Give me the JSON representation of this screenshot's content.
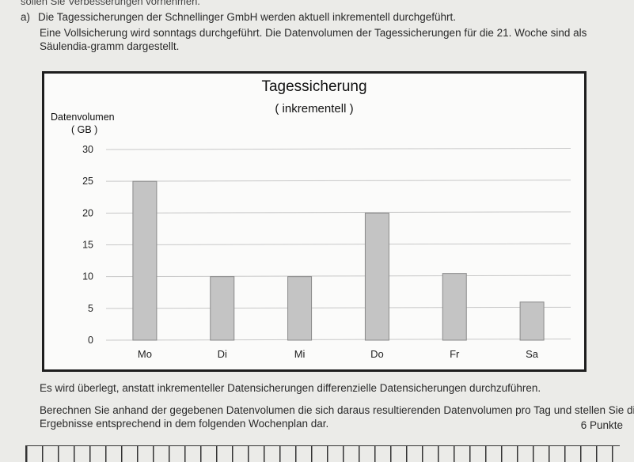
{
  "page": {
    "cut_line": "sollen Sie Verbesserungen vornehmen.",
    "task_marker": "a)",
    "task_title": "Die Tagessicherungen der Schnellinger GmbH werden aktuell inkrementell durchgeführt.",
    "intro_text": "Eine Vollsicherung wird sonntags durchgeführt. Die Datenvolumen der Tagessicherungen für die 21. Woche sind als Säulendia-gramm dargestellt.",
    "para_1": "Es wird überlegt, anstatt inkrementeller Datensicherungen differenzielle Datensicherungen durchzuführen.",
    "para_2_line1": "Berechnen Sie anhand der gegebenen Datenvolumen die sich daraus resultierenden Datenvolumen pro Tag und stellen Sie die",
    "para_2_line2": "Ergebnisse entsprechend in dem folgenden Wochenplan dar.",
    "points": "6 Punkte"
  },
  "chart_data": {
    "type": "bar",
    "title": "Tagessicherung",
    "subtitle": "( inkrementell )",
    "ylabel_line1": "Datenvolumen",
    "ylabel_line2": "( GB )",
    "xlabel": "",
    "categories": [
      "Mo",
      "Di",
      "Mi",
      "Do",
      "Fr",
      "Sa"
    ],
    "values": [
      25,
      10,
      10,
      20,
      10.5,
      6
    ],
    "ylim": [
      0,
      30
    ],
    "yticks": [
      0,
      5,
      10,
      15,
      20,
      25,
      30
    ],
    "grid": true,
    "bar_color": "#c4c4c4",
    "bar_edge_color": "#8a8a8a"
  }
}
